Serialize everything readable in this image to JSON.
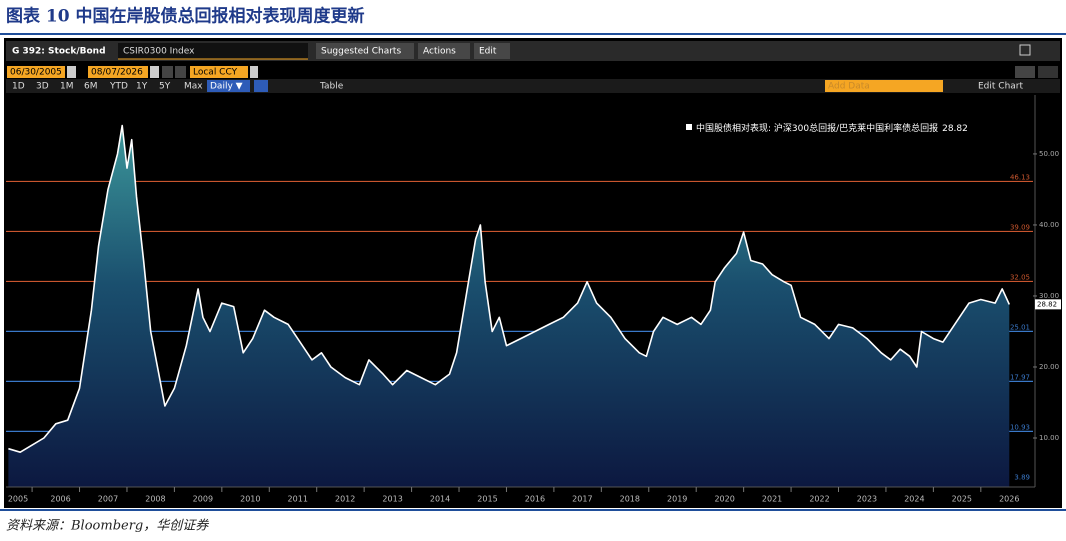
{
  "header": {
    "title": "图表 10 中国在岸股债总回报相对表现周度更新"
  },
  "toolbar": {
    "ticker": "G 392: Stock/Bond",
    "security": "CSIR0300 Index",
    "menus": [
      "Suggested Charts",
      "Actions",
      "Edit"
    ],
    "start_date": "06/30/2005",
    "end_date": "08/07/2026",
    "currency": "Local CCY",
    "ranges": [
      "1D",
      "3D",
      "1M",
      "6M",
      "YTD",
      "1Y",
      "5Y",
      "Max"
    ],
    "frequency": "Daily ▼",
    "table": "Table",
    "add_data": "Add Data",
    "edit_chart": "Edit Chart"
  },
  "chart_data": {
    "type": "area",
    "x": [
      2005.5,
      2005.75,
      2006,
      2006.25,
      2006.5,
      2006.75,
      2007,
      2007.25,
      2007.4,
      2007.6,
      2007.8,
      2007.9,
      2008,
      2008.1,
      2008.2,
      2008.35,
      2008.5,
      2008.7,
      2008.8,
      2009,
      2009.25,
      2009.5,
      2009.6,
      2009.75,
      2010,
      2010.25,
      2010.45,
      2010.65,
      2010.9,
      2011.1,
      2011.4,
      2011.6,
      2011.9,
      2012.1,
      2012.3,
      2012.6,
      2012.9,
      2013.1,
      2013.4,
      2013.6,
      2013.9,
      2014.2,
      2014.5,
      2014.8,
      2014.95,
      2015.15,
      2015.35,
      2015.45,
      2015.55,
      2015.7,
      2015.85,
      2016,
      2016.3,
      2016.6,
      2016.9,
      2017.2,
      2017.5,
      2017.7,
      2017.9,
      2018.2,
      2018.5,
      2018.8,
      2018.95,
      2019.1,
      2019.3,
      2019.6,
      2019.9,
      2020.1,
      2020.3,
      2020.4,
      2020.6,
      2020.85,
      2021,
      2021.15,
      2021.4,
      2021.6,
      2021.85,
      2022,
      2022.2,
      2022.5,
      2022.8,
      2023,
      2023.3,
      2023.6,
      2023.9,
      2024.1,
      2024.3,
      2024.5,
      2024.65,
      2024.75,
      2025,
      2025.2,
      2025.5,
      2025.75,
      2026,
      2026.3,
      2026.45,
      2026.6
    ],
    "series": [
      {
        "name": "中国股债相对表现: 沪深300总回报/巴克莱中国利率债总回报",
        "color": "#ffffff",
        "values": [
          8.5,
          8,
          9,
          10,
          12,
          12.5,
          17,
          28,
          37,
          45,
          50,
          54,
          48,
          52,
          44,
          35,
          25,
          18,
          14.5,
          17,
          23,
          31,
          27,
          25,
          29,
          28.5,
          22,
          24,
          28,
          27,
          26,
          24,
          21,
          22,
          20,
          18.5,
          17.5,
          21,
          19,
          17.5,
          19.5,
          18.5,
          17.5,
          19,
          22,
          30,
          38,
          40,
          32,
          25,
          27,
          23,
          24,
          25,
          26,
          27,
          29,
          32,
          29,
          27,
          24,
          22,
          21.5,
          25,
          27,
          26,
          27,
          26,
          28,
          32,
          34,
          36,
          39,
          35,
          34.5,
          33,
          32,
          31.5,
          27,
          26,
          24,
          26,
          25.5,
          24,
          22,
          21,
          22.5,
          21.5,
          20,
          25,
          24,
          23.5,
          26.5,
          29,
          29.5,
          29,
          31,
          28.82
        ]
      }
    ],
    "xlim": [
      2005.45,
      2027.1
    ],
    "xticks": [
      2005,
      2006,
      2007,
      2008,
      2009,
      2010,
      2011,
      2012,
      2013,
      2014,
      2015,
      2016,
      2017,
      2018,
      2019,
      2020,
      2021,
      2022,
      2023,
      2024,
      2025,
      2026
    ],
    "ylim": [
      3.1,
      58.3
    ],
    "yticks": [
      {
        "value": 10,
        "label": "10.00"
      },
      {
        "value": 20,
        "label": "20.00"
      },
      {
        "value": 30,
        "label": "30.00"
      },
      {
        "value": 40,
        "label": "40.00"
      },
      {
        "value": 50,
        "label": "50.00"
      }
    ],
    "reference_lines": [
      {
        "value": 46.13,
        "color": "#c8562e"
      },
      {
        "value": 39.09,
        "color": "#c8562e"
      },
      {
        "value": 32.05,
        "color": "#c8562e"
      },
      {
        "value": 25.01,
        "color": "#3a78c8"
      },
      {
        "value": 17.97,
        "color": "#3a78c8"
      },
      {
        "value": 10.93,
        "color": "#3a78c8"
      },
      {
        "value": 3.89,
        "color": "#3a78c8"
      }
    ],
    "grid": false
  },
  "source": "资料来源：Bloomberg，华创证券"
}
